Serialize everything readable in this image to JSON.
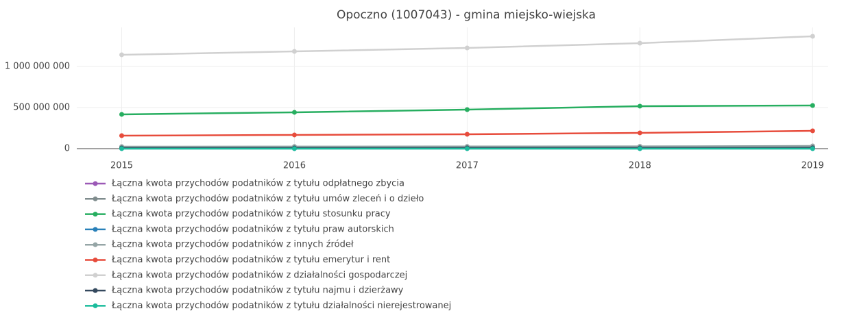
{
  "chart_data": {
    "type": "line",
    "title": "Opoczno (1007043) - gmina miejsko-wiejska",
    "x": [
      2015,
      2016,
      2017,
      2018,
      2019
    ],
    "xlim": [
      2014.74,
      2019.09
    ],
    "xticks": [
      2015,
      2016,
      2017,
      2018,
      2019
    ],
    "ylim": [
      -20000000,
      1475000000
    ],
    "yticks": [
      0,
      {
        "value": 500000000,
        "label": "500 000 000"
      },
      {
        "value": 1000000000,
        "label": "1 000 000 000"
      }
    ],
    "grid": true,
    "legend": "bottom-left",
    "series": [
      {
        "name": "Łączna kwota przychodów podatników z tytułu odpłatnego zbycia",
        "color": "#9b59b6",
        "values": [
          5000000,
          5000000,
          6000000,
          6000000,
          7000000
        ]
      },
      {
        "name": "Łączna kwota przychodów podatników z tytułu umów zleceń i o dzieło",
        "color": "#7f8c8d",
        "values": [
          20000000,
          21000000,
          22000000,
          23000000,
          25000000
        ]
      },
      {
        "name": "Łączna kwota przychodów podatników z tytułu stosunku pracy",
        "color": "#27ae60",
        "values": [
          417000000,
          442000000,
          475000000,
          517000000,
          525000000
        ]
      },
      {
        "name": "Łączna kwota przychodów podatników z tytułu praw autorskich",
        "color": "#2980b9",
        "values": [
          1000000,
          1000000,
          1000000,
          1000000,
          1000000
        ]
      },
      {
        "name": "Łączna kwota przychodów podatników z innych źródeł",
        "color": "#95a5a6",
        "values": [
          25000000,
          26000000,
          27000000,
          28000000,
          33000000
        ]
      },
      {
        "name": "Łączna kwota przychodów podatników z tytułu emerytur i rent",
        "color": "#e74c3c",
        "values": [
          158000000,
          167000000,
          175000000,
          192000000,
          217000000
        ]
      },
      {
        "name": "Łączna kwota przychodów podatników z działalności gospodarczej",
        "color": "#d0d0d0",
        "values": [
          1142000000,
          1183000000,
          1225000000,
          1283000000,
          1367000000
        ]
      },
      {
        "name": "Łączna kwota przychodów podatników z tytułu najmu i dzierżawy",
        "color": "#34495e",
        "values": [
          8000000,
          8000000,
          9000000,
          9000000,
          10000000
        ]
      },
      {
        "name": "Łączna kwota przychodów podatników z tytułu działalności nierejestrowanej",
        "color": "#1abc9c",
        "values": [
          500000,
          500000,
          500000,
          500000,
          500000
        ]
      }
    ]
  }
}
